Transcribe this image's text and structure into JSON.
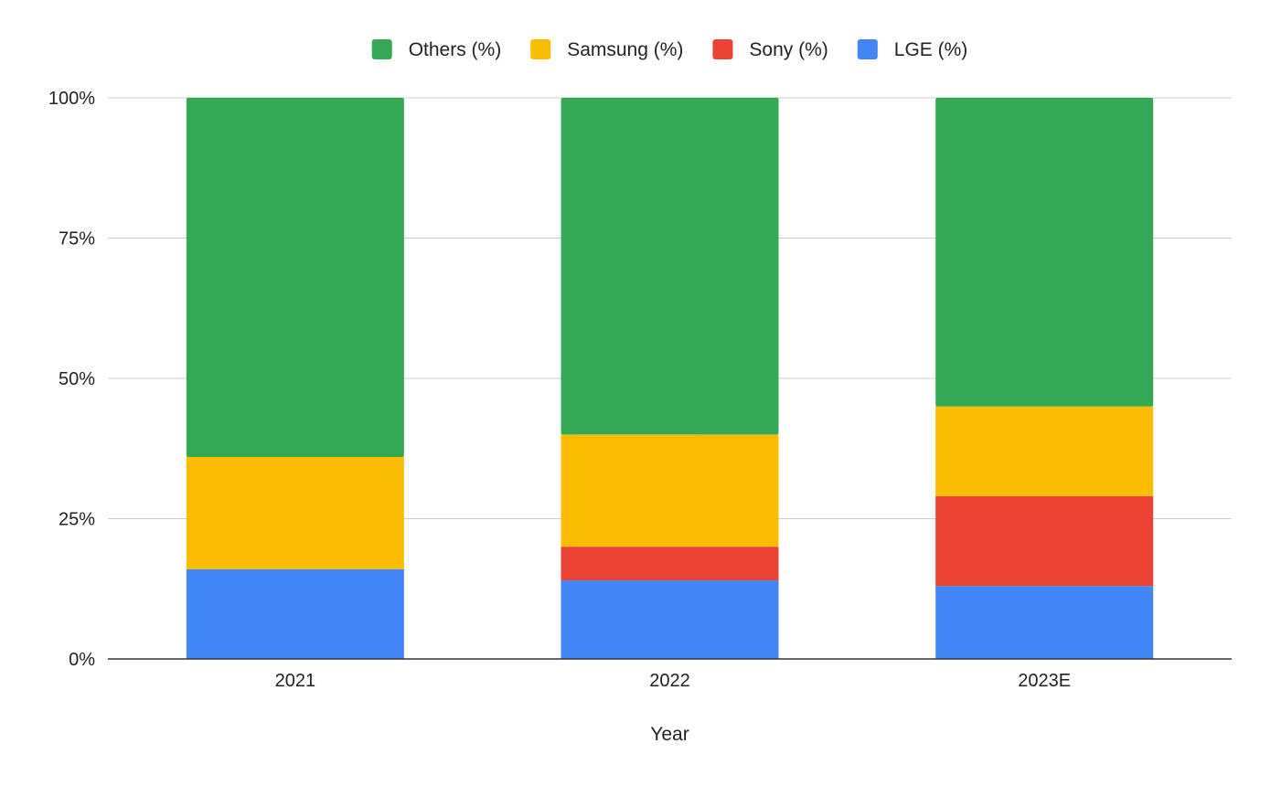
{
  "chart_data": {
    "type": "bar",
    "stacked": true,
    "normalized": true,
    "title": "",
    "xlabel": "Year",
    "ylabel": "",
    "categories": [
      "2021",
      "2022",
      "2023E"
    ],
    "ylim": [
      0,
      100
    ],
    "y_ticks": [
      "0%",
      "25%",
      "50%",
      "75%",
      "100%"
    ],
    "y_tick_values": [
      0,
      25,
      50,
      75,
      100
    ],
    "grid": true,
    "legend_position": "top",
    "series": [
      {
        "name": "LGE (%)",
        "color": "#4285F4",
        "values": [
          16,
          14,
          13
        ]
      },
      {
        "name": "Sony (%)",
        "color": "#EA4335",
        "values": [
          0,
          6,
          16
        ]
      },
      {
        "name": "Samsung (%)",
        "color": "#FBBC04",
        "values": [
          20,
          20,
          16
        ]
      },
      {
        "name": "Others (%)",
        "color": "#34A853",
        "values": [
          64,
          60,
          55
        ]
      }
    ],
    "legend_order": [
      "Others (%)",
      "Samsung (%)",
      "Sony (%)",
      "LGE (%)"
    ]
  }
}
